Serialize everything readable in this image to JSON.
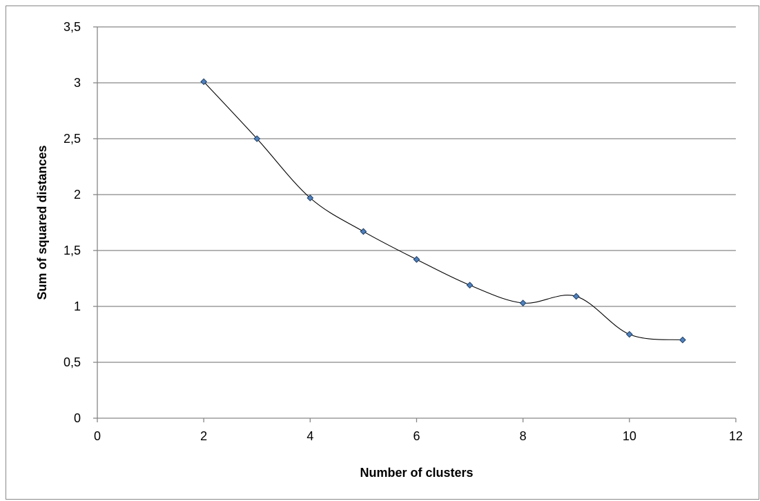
{
  "chart_data": {
    "type": "line",
    "title": "",
    "xlabel": "Number of clusters",
    "ylabel": "Sum of squared distances",
    "xlim": [
      0,
      12
    ],
    "ylim": [
      0,
      3.5
    ],
    "x_ticks": [
      0,
      2,
      4,
      6,
      8,
      10,
      12
    ],
    "x_tick_labels": [
      "0",
      "2",
      "4",
      "6",
      "8",
      "10",
      "12"
    ],
    "y_ticks": [
      0,
      0.5,
      1,
      1.5,
      2,
      2.5,
      3,
      3.5
    ],
    "y_tick_labels": [
      "0",
      "0,5",
      "1",
      "1,5",
      "2",
      "2,5",
      "3",
      "3,5"
    ],
    "grid": "horizontal",
    "legend": "none",
    "smoothed": true,
    "colors": {
      "marker_fill": "#4f81bd",
      "marker_stroke": "#1f3f66",
      "line": "#000000",
      "grid": "#868686"
    },
    "series": [
      {
        "marker": "diamond",
        "x": [
          2,
          3,
          4,
          5,
          6,
          7,
          8,
          9,
          10,
          11
        ],
        "y": [
          3.01,
          2.5,
          1.97,
          1.67,
          1.42,
          1.19,
          1.03,
          1.09,
          0.75,
          0.7
        ]
      }
    ]
  }
}
